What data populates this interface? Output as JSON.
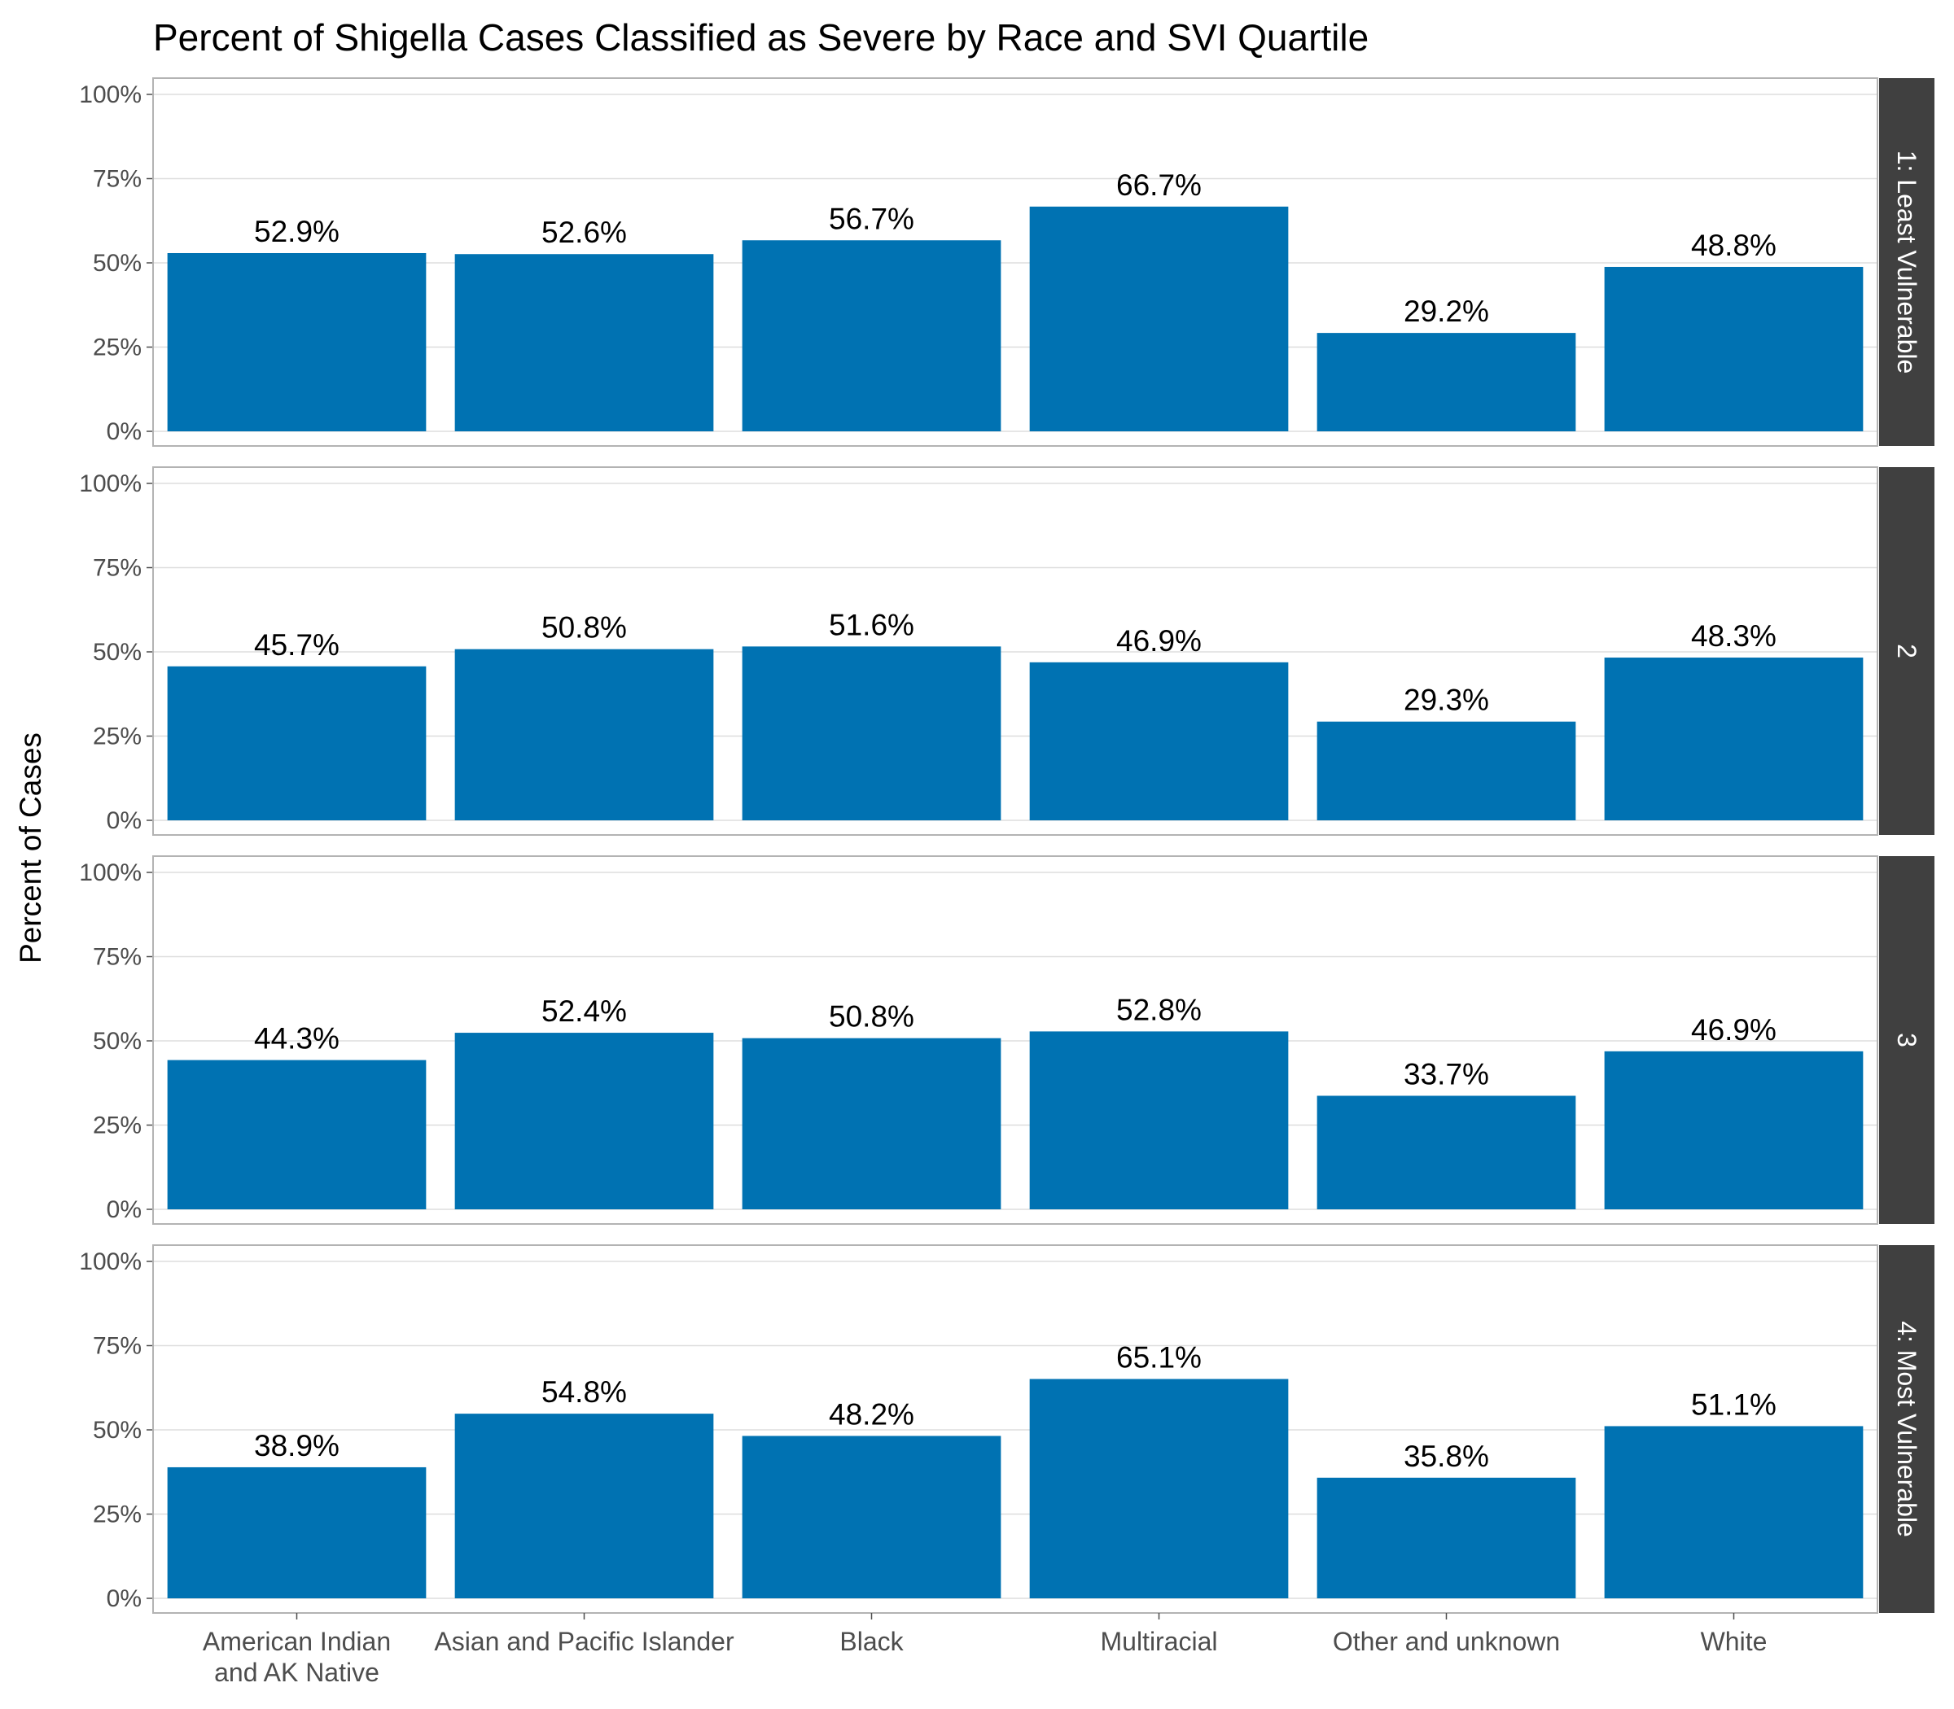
{
  "chart_data": {
    "type": "bar",
    "title": "Percent of Shigella Cases Classified as Severe by Race and SVI Quartile",
    "ylabel": "Percent of Cases",
    "xlabel": "",
    "ylim": [
      0,
      1
    ],
    "y_ticks": [
      "0%",
      "25%",
      "50%",
      "75%",
      "100%"
    ],
    "categories": [
      "American Indian and AK Native",
      "Asian and Pacific Islander",
      "Black",
      "Multiracial",
      "Other and unknown",
      "White"
    ],
    "category_tick_labels": [
      [
        "American Indian",
        "and AK Native"
      ],
      [
        "Asian and Pacific Islander"
      ],
      [
        "Black"
      ],
      [
        "Multiracial"
      ],
      [
        "Other and unknown"
      ],
      [
        "White"
      ]
    ],
    "bar_color": "#0072b2",
    "strip_color": "#404040",
    "grid": true,
    "facets": [
      {
        "name": "1: Least Vulnerable",
        "values": [
          0.529,
          0.526,
          0.567,
          0.667,
          0.292,
          0.488
        ],
        "labels": [
          "52.9%",
          "52.6%",
          "56.7%",
          "66.7%",
          "29.2%",
          "48.8%"
        ]
      },
      {
        "name": "2",
        "values": [
          0.457,
          0.508,
          0.516,
          0.469,
          0.293,
          0.483
        ],
        "labels": [
          "45.7%",
          "50.8%",
          "51.6%",
          "46.9%",
          "29.3%",
          "48.3%"
        ]
      },
      {
        "name": "3",
        "values": [
          0.443,
          0.524,
          0.508,
          0.528,
          0.337,
          0.469
        ],
        "labels": [
          "44.3%",
          "52.4%",
          "50.8%",
          "52.8%",
          "33.7%",
          "46.9%"
        ]
      },
      {
        "name": "4: Most Vulnerable",
        "values": [
          0.389,
          0.548,
          0.482,
          0.651,
          0.358,
          0.511
        ],
        "labels": [
          "38.9%",
          "54.8%",
          "48.2%",
          "65.1%",
          "35.8%",
          "51.1%"
        ]
      }
    ]
  }
}
